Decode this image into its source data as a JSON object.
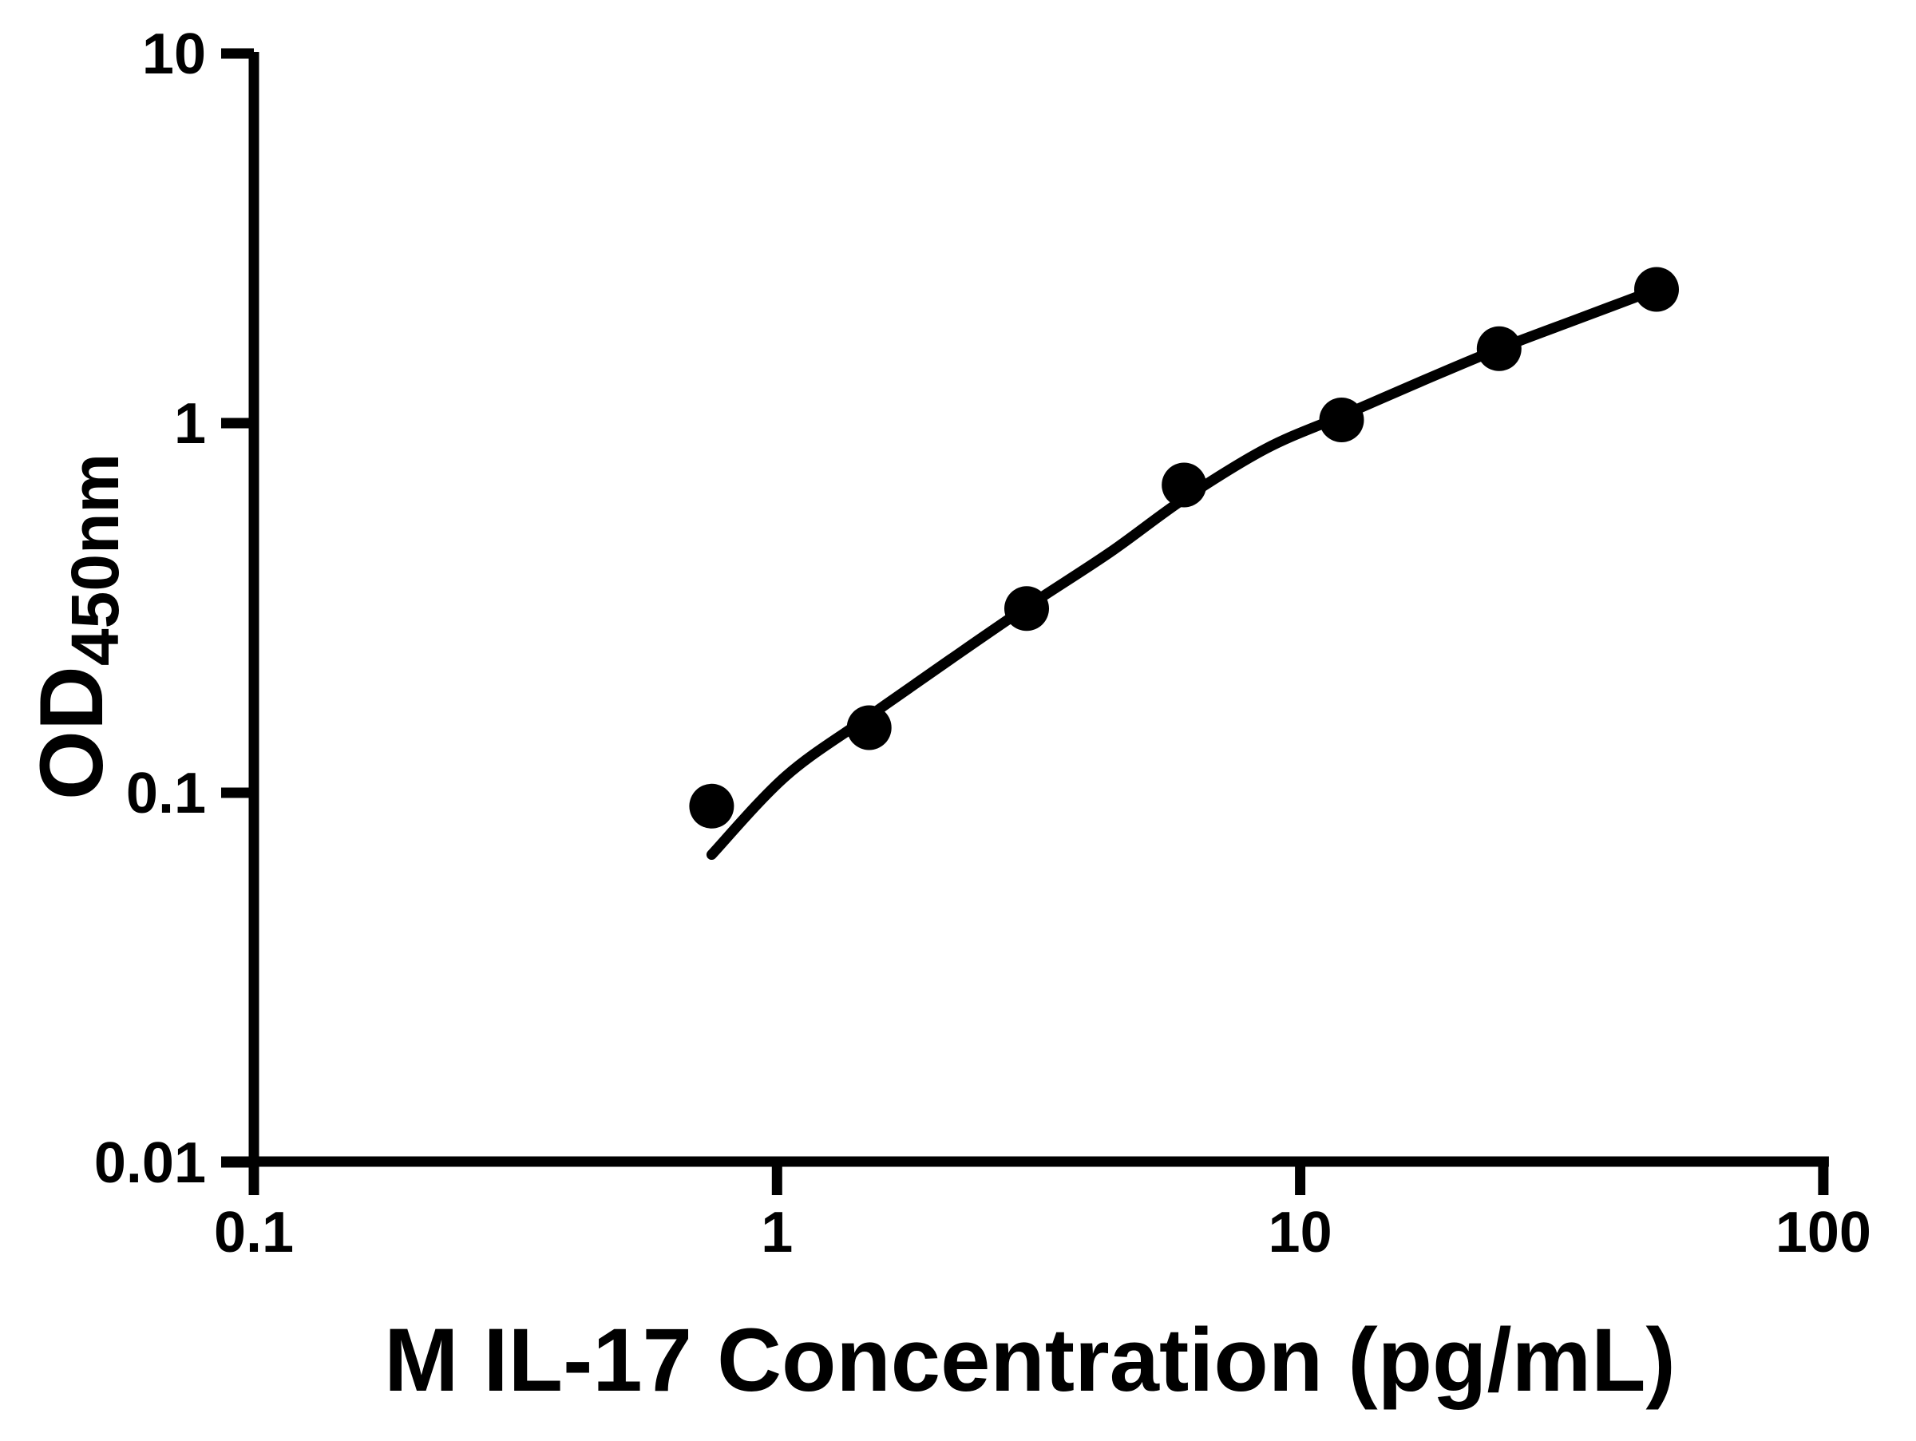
{
  "figure": {
    "background": "#ffffff",
    "foreground": "#000000"
  },
  "chart_data": {
    "type": "scatter",
    "title": "",
    "xlabel": "M IL-17 Concentration (pg/mL)",
    "ylabel": "OD450nm",
    "ylabel_main": "OD",
    "ylabel_sub": "450nm",
    "grid": false,
    "legend": "none",
    "marker": {
      "shape": "circle",
      "color": "#000000",
      "radius_px": 28
    },
    "fit_line_color": "#000000",
    "x_axis": {
      "scale": "log",
      "min": 0.1,
      "max": 100,
      "ticks": [
        {
          "value": 0.1,
          "label": "0.1"
        },
        {
          "value": 1,
          "label": "1"
        },
        {
          "value": 10,
          "label": "10"
        },
        {
          "value": 100,
          "label": "100"
        }
      ]
    },
    "y_axis": {
      "scale": "log",
      "min": 0.01,
      "max": 10,
      "ticks": [
        {
          "value": 10,
          "label": "10"
        },
        {
          "value": 1,
          "label": "1"
        },
        {
          "value": 0.1,
          "label": "0.1"
        },
        {
          "value": 0.01,
          "label": "0.01"
        }
      ]
    },
    "series": [
      {
        "name": "standard-points",
        "points": [
          {
            "x": 0.75,
            "y": 0.092
          },
          {
            "x": 1.5,
            "y": 0.15
          },
          {
            "x": 3,
            "y": 0.315
          },
          {
            "x": 6,
            "y": 0.68
          },
          {
            "x": 12,
            "y": 1.02
          },
          {
            "x": 24,
            "y": 1.59
          },
          {
            "x": 48,
            "y": 2.3
          }
        ]
      }
    ],
    "fit_curve": {
      "name": "4pl-fit-curve",
      "points": [
        {
          "x": 0.75,
          "y": 0.068
        },
        {
          "x": 1.04,
          "y": 0.111
        },
        {
          "x": 1.5,
          "y": 0.161
        },
        {
          "x": 2.15,
          "y": 0.23
        },
        {
          "x": 3.0,
          "y": 0.318
        },
        {
          "x": 4.33,
          "y": 0.447
        },
        {
          "x": 6.0,
          "y": 0.624
        },
        {
          "x": 8.6,
          "y": 0.853
        },
        {
          "x": 12,
          "y": 1.046
        },
        {
          "x": 17.1,
          "y": 1.3
        },
        {
          "x": 24,
          "y": 1.59
        },
        {
          "x": 34.5,
          "y": 1.93
        },
        {
          "x": 48,
          "y": 2.3
        }
      ]
    }
  }
}
